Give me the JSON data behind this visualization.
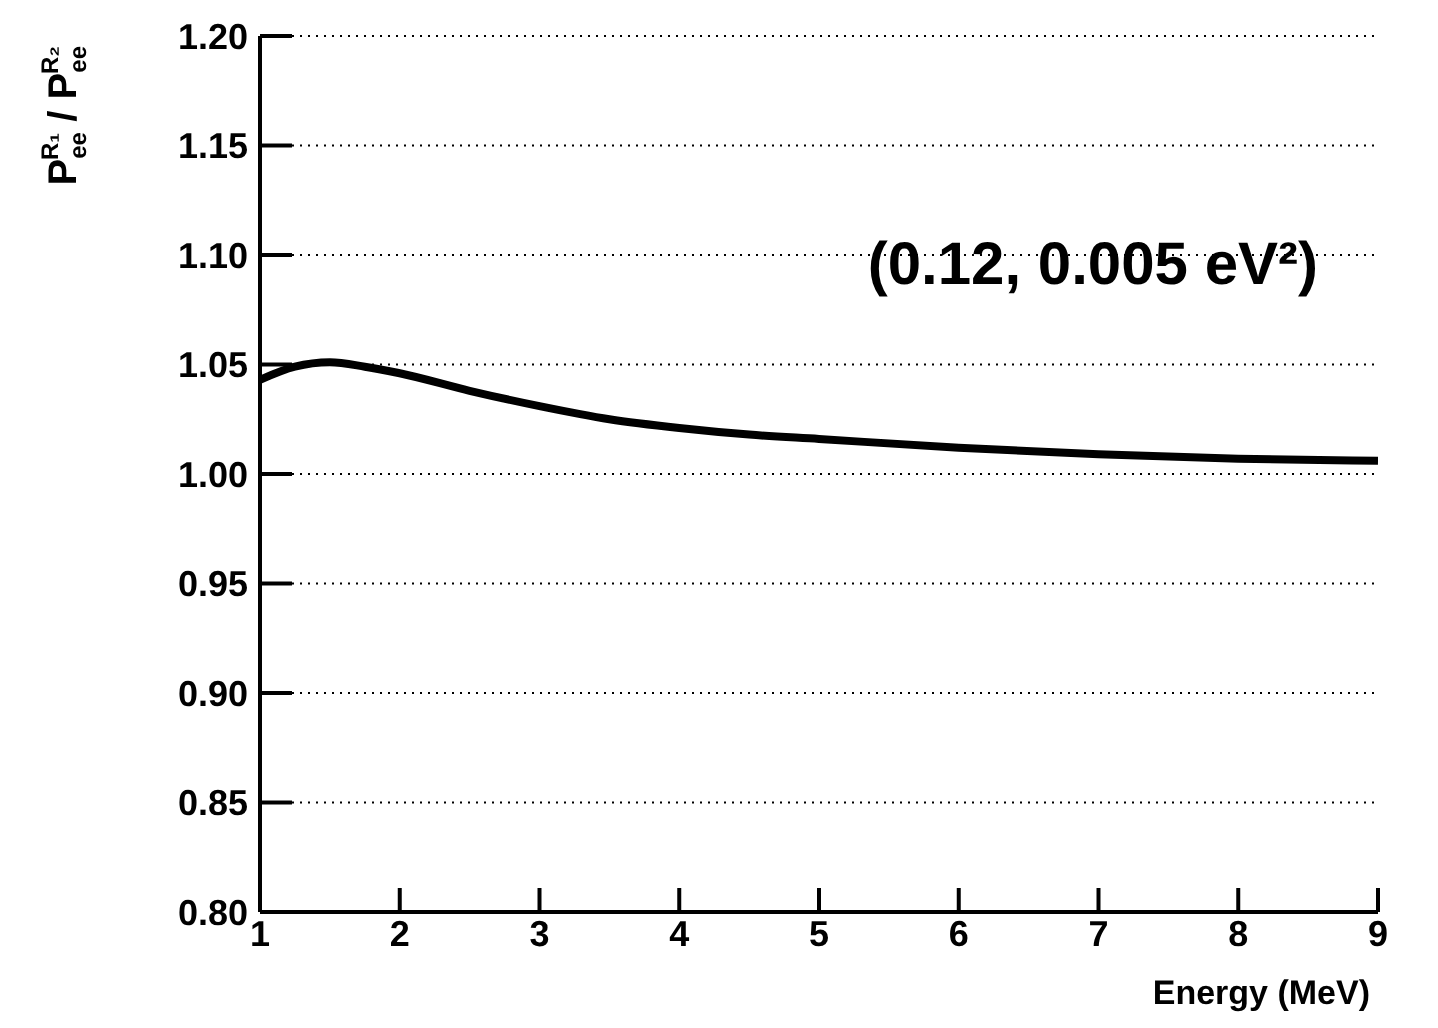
{
  "chart_data": {
    "type": "line",
    "xlabel": "Energy (MeV)",
    "ylabel": "P$_{ee}$$^{R₁}$ / P$_{ee}$$^{R₂}$",
    "annotations": [
      "(0.12, 0.005 eV²)"
    ],
    "x": [
      1,
      1.25,
      1.5,
      1.75,
      2,
      2.5,
      3,
      3.5,
      4,
      4.5,
      5,
      6,
      7,
      8,
      9
    ],
    "series": [
      {
        "color": "#000000",
        "values": [
          1.043,
          1.049,
          1.051,
          1.049,
          1.046,
          1.038,
          1.031,
          1.025,
          1.021,
          1.018,
          1.016,
          1.012,
          1.009,
          1.007,
          1.006
        ]
      }
    ],
    "xlim": [
      1,
      9
    ],
    "xticks": [
      1,
      2,
      3,
      4,
      5,
      6,
      7,
      8,
      9
    ],
    "ylim": [
      0.8,
      1.2
    ],
    "yticks": [
      {
        "value": 0.8,
        "label": "0.80"
      },
      {
        "value": 0.85,
        "label": "0.85"
      },
      {
        "value": 0.9,
        "label": "0.90"
      },
      {
        "value": 0.95,
        "label": "0.95"
      },
      {
        "value": 1,
        "label": "1.00"
      },
      {
        "value": 1.05,
        "label": "1.05"
      },
      {
        "value": 1.1,
        "label": "1.10"
      },
      {
        "value": 1.15,
        "label": "1.15"
      },
      {
        "value": 1.2,
        "label": "1.20"
      }
    ],
    "grid": "y",
    "marker": "none",
    "line_style": "solid"
  }
}
